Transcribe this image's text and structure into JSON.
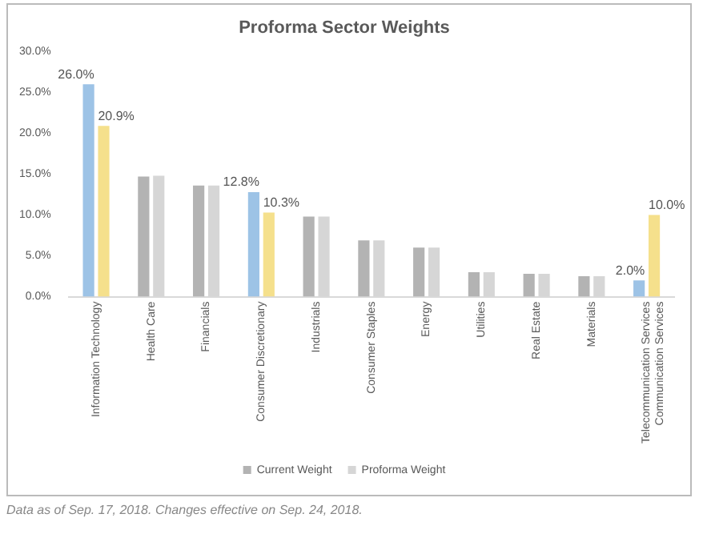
{
  "chart_data": {
    "type": "bar",
    "title": "Proforma Sector Weights",
    "categories": [
      "Information Technology",
      "Health Care",
      "Financials",
      "Consumer Discretionary",
      "Industrials",
      "Consumer Staples",
      "Energy",
      "Utilities",
      "Real Estate",
      "Materials",
      "Telecommunication Services\nCommunication Services"
    ],
    "series": [
      {
        "name": "Current Weight",
        "color": "#b3b3b3",
        "colors": [
          "#9dc3e6",
          "#b3b3b3",
          "#b3b3b3",
          "#9dc3e6",
          "#b3b3b3",
          "#b3b3b3",
          "#b3b3b3",
          "#b3b3b3",
          "#b3b3b3",
          "#b3b3b3",
          "#9dc3e6"
        ],
        "values": [
          26.0,
          14.7,
          13.6,
          12.8,
          9.8,
          6.9,
          6.0,
          3.0,
          2.8,
          2.5,
          2.0
        ],
        "value_labels": [
          "26.0%",
          null,
          null,
          "12.8%",
          null,
          null,
          null,
          null,
          null,
          null,
          "2.0%"
        ]
      },
      {
        "name": "Proforma Weight",
        "color": "#d6d6d6",
        "colors": [
          "#f5e08c",
          "#d6d6d6",
          "#d6d6d6",
          "#f5e08c",
          "#d6d6d6",
          "#d6d6d6",
          "#d6d6d6",
          "#d6d6d6",
          "#d6d6d6",
          "#d6d6d6",
          "#f5e08c"
        ],
        "values": [
          20.9,
          14.8,
          13.6,
          10.3,
          9.8,
          6.9,
          6.0,
          3.0,
          2.8,
          2.5,
          10.0
        ],
        "value_labels": [
          "20.9%",
          null,
          null,
          "10.3%",
          null,
          null,
          null,
          null,
          null,
          null,
          "10.0%"
        ]
      }
    ],
    "ylim": [
      0,
      30
    ],
    "yticks": [
      {
        "value": 0,
        "label": "0.0%"
      },
      {
        "value": 5,
        "label": "5.0%"
      },
      {
        "value": 10,
        "label": "10.0%"
      },
      {
        "value": 15,
        "label": "15.0%"
      },
      {
        "value": 20,
        "label": "20.0%"
      },
      {
        "value": 25,
        "label": "25.0%"
      },
      {
        "value": 30,
        "label": "30.0%"
      }
    ],
    "grid": false,
    "legend": "bottom",
    "annotations": [
      "Data as of Sep. 17, 2018. Changes effective on Sep. 24, 2018."
    ]
  }
}
